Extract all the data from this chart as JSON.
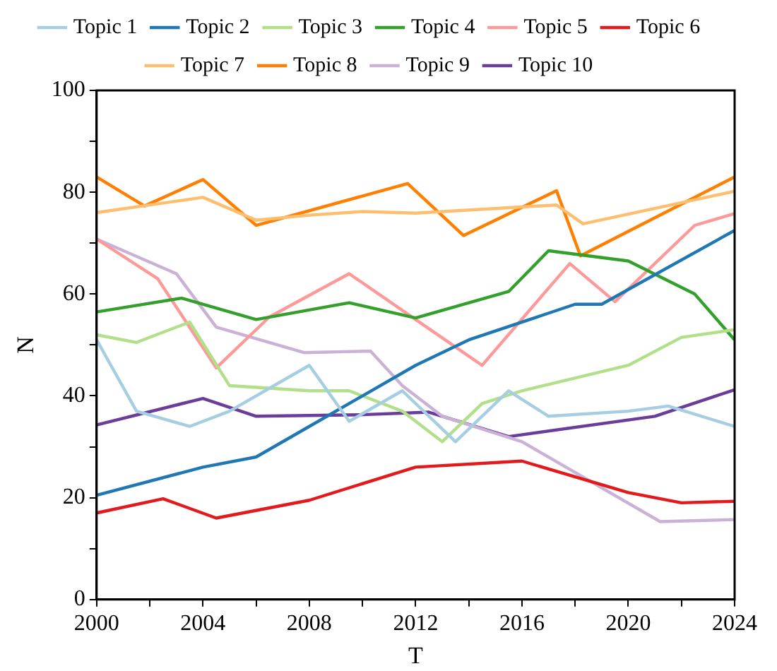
{
  "chart_data": {
    "type": "line",
    "xlabel": "T",
    "ylabel": "N",
    "xlim": [
      2000,
      2024
    ],
    "ylim": [
      0,
      100
    ],
    "xticks": [
      2000,
      {
        "value": 2002,
        "label": null
      },
      2004,
      {
        "value": 2006,
        "label": null
      },
      2008,
      {
        "value": 2010,
        "label": null
      },
      2012,
      {
        "value": 2014,
        "label": null
      },
      2016,
      {
        "value": 2018,
        "label": null
      },
      2020,
      {
        "value": 2022,
        "label": null
      },
      2024
    ],
    "yticks": [
      0,
      {
        "value": 10,
        "label": null
      },
      20,
      {
        "value": 30,
        "label": null
      },
      40,
      {
        "value": 50,
        "label": null
      },
      60,
      {
        "value": 70,
        "label": null
      },
      80,
      {
        "value": 90,
        "label": null
      },
      100
    ],
    "grid": false,
    "legend": "top",
    "marker": "none",
    "line_style": "solid",
    "series": [
      {
        "name": "Topic 1",
        "color": "#a6cee3",
        "x": [
          2000,
          2001.5,
          2003.5,
          2005,
          2008,
          2009.5,
          2011.5,
          2013.5,
          2015.5,
          2017,
          2020,
          2021.5,
          2024
        ],
        "values": [
          51,
          37,
          34,
          37,
          46,
          35,
          41,
          31,
          41,
          36,
          37,
          38,
          34
        ]
      },
      {
        "name": "Topic 2",
        "color": "#1f78b4",
        "x": [
          2000,
          2004,
          2006,
          2008,
          2012,
          2014,
          2018,
          2019,
          2024
        ],
        "values": [
          20.5,
          26,
          28,
          34,
          46,
          51,
          58,
          58,
          72.5
        ]
      },
      {
        "name": "Topic 3",
        "color": "#b2df8a",
        "x": [
          2000,
          2001.5,
          2003.5,
          2005,
          2008,
          2009.5,
          2011.5,
          2013,
          2014.5,
          2016,
          2020,
          2022,
          2024
        ],
        "values": [
          52,
          50.5,
          54.5,
          42,
          41,
          41,
          37,
          31,
          38.5,
          41,
          46,
          51.5,
          53
        ]
      },
      {
        "name": "Topic 4",
        "color": "#33a02c",
        "x": [
          2000,
          2003.2,
          2006,
          2009.5,
          2012,
          2015.5,
          2017,
          2020,
          2022.5,
          2024
        ],
        "values": [
          56.5,
          59.2,
          55,
          58.3,
          55.3,
          60.5,
          68.5,
          66.5,
          60,
          51
        ]
      },
      {
        "name": "Topic 5",
        "color": "#fb9a99",
        "x": [
          2000,
          2002.3,
          2004.5,
          2006.5,
          2009.5,
          2012,
          2014.5,
          2017.8,
          2019.5,
          2022.5,
          2024
        ],
        "values": [
          70.8,
          63,
          45.5,
          55.5,
          64,
          55,
          46,
          66,
          58.5,
          73.5,
          75.8
        ]
      },
      {
        "name": "Topic 6",
        "color": "#e31a1c",
        "x": [
          2000,
          2002.5,
          2004.5,
          2008,
          2012,
          2016,
          2020,
          2022,
          2024
        ],
        "values": [
          17,
          19.8,
          16,
          19.5,
          26,
          27.2,
          21,
          19,
          19.3
        ]
      },
      {
        "name": "Topic 7",
        "color": "#fdbf6f",
        "x": [
          2000,
          2002,
          2004,
          2006,
          2008,
          2010,
          2012,
          2017.3,
          2018.3,
          2024
        ],
        "values": [
          76,
          77.5,
          79,
          74.5,
          75.5,
          76.2,
          75.9,
          77.5,
          73.8,
          80.2
        ]
      },
      {
        "name": "Topic 8",
        "color": "#ff7f00",
        "x": [
          2000,
          2001.8,
          2004,
          2006,
          2011.7,
          2013.8,
          2017.3,
          2018.2,
          2024
        ],
        "values": [
          83,
          77.3,
          82.5,
          73.5,
          81.7,
          71.5,
          80.3,
          67.5,
          83
        ]
      },
      {
        "name": "Topic 9",
        "color": "#cab2d6",
        "x": [
          2000,
          2003,
          2004.5,
          2007.8,
          2010.3,
          2011.5,
          2013,
          2016,
          2021.2,
          2024
        ],
        "values": [
          70.8,
          64,
          53.5,
          48.5,
          48.8,
          42,
          36,
          31,
          15.3,
          15.7
        ]
      },
      {
        "name": "Topic 10",
        "color": "#6a3d9a",
        "x": [
          2000,
          2004,
          2006,
          2010,
          2012.5,
          2015.5,
          2021,
          2024
        ],
        "values": [
          34.3,
          39.5,
          36,
          36.3,
          36.8,
          32,
          36,
          41.2
        ]
      }
    ]
  }
}
